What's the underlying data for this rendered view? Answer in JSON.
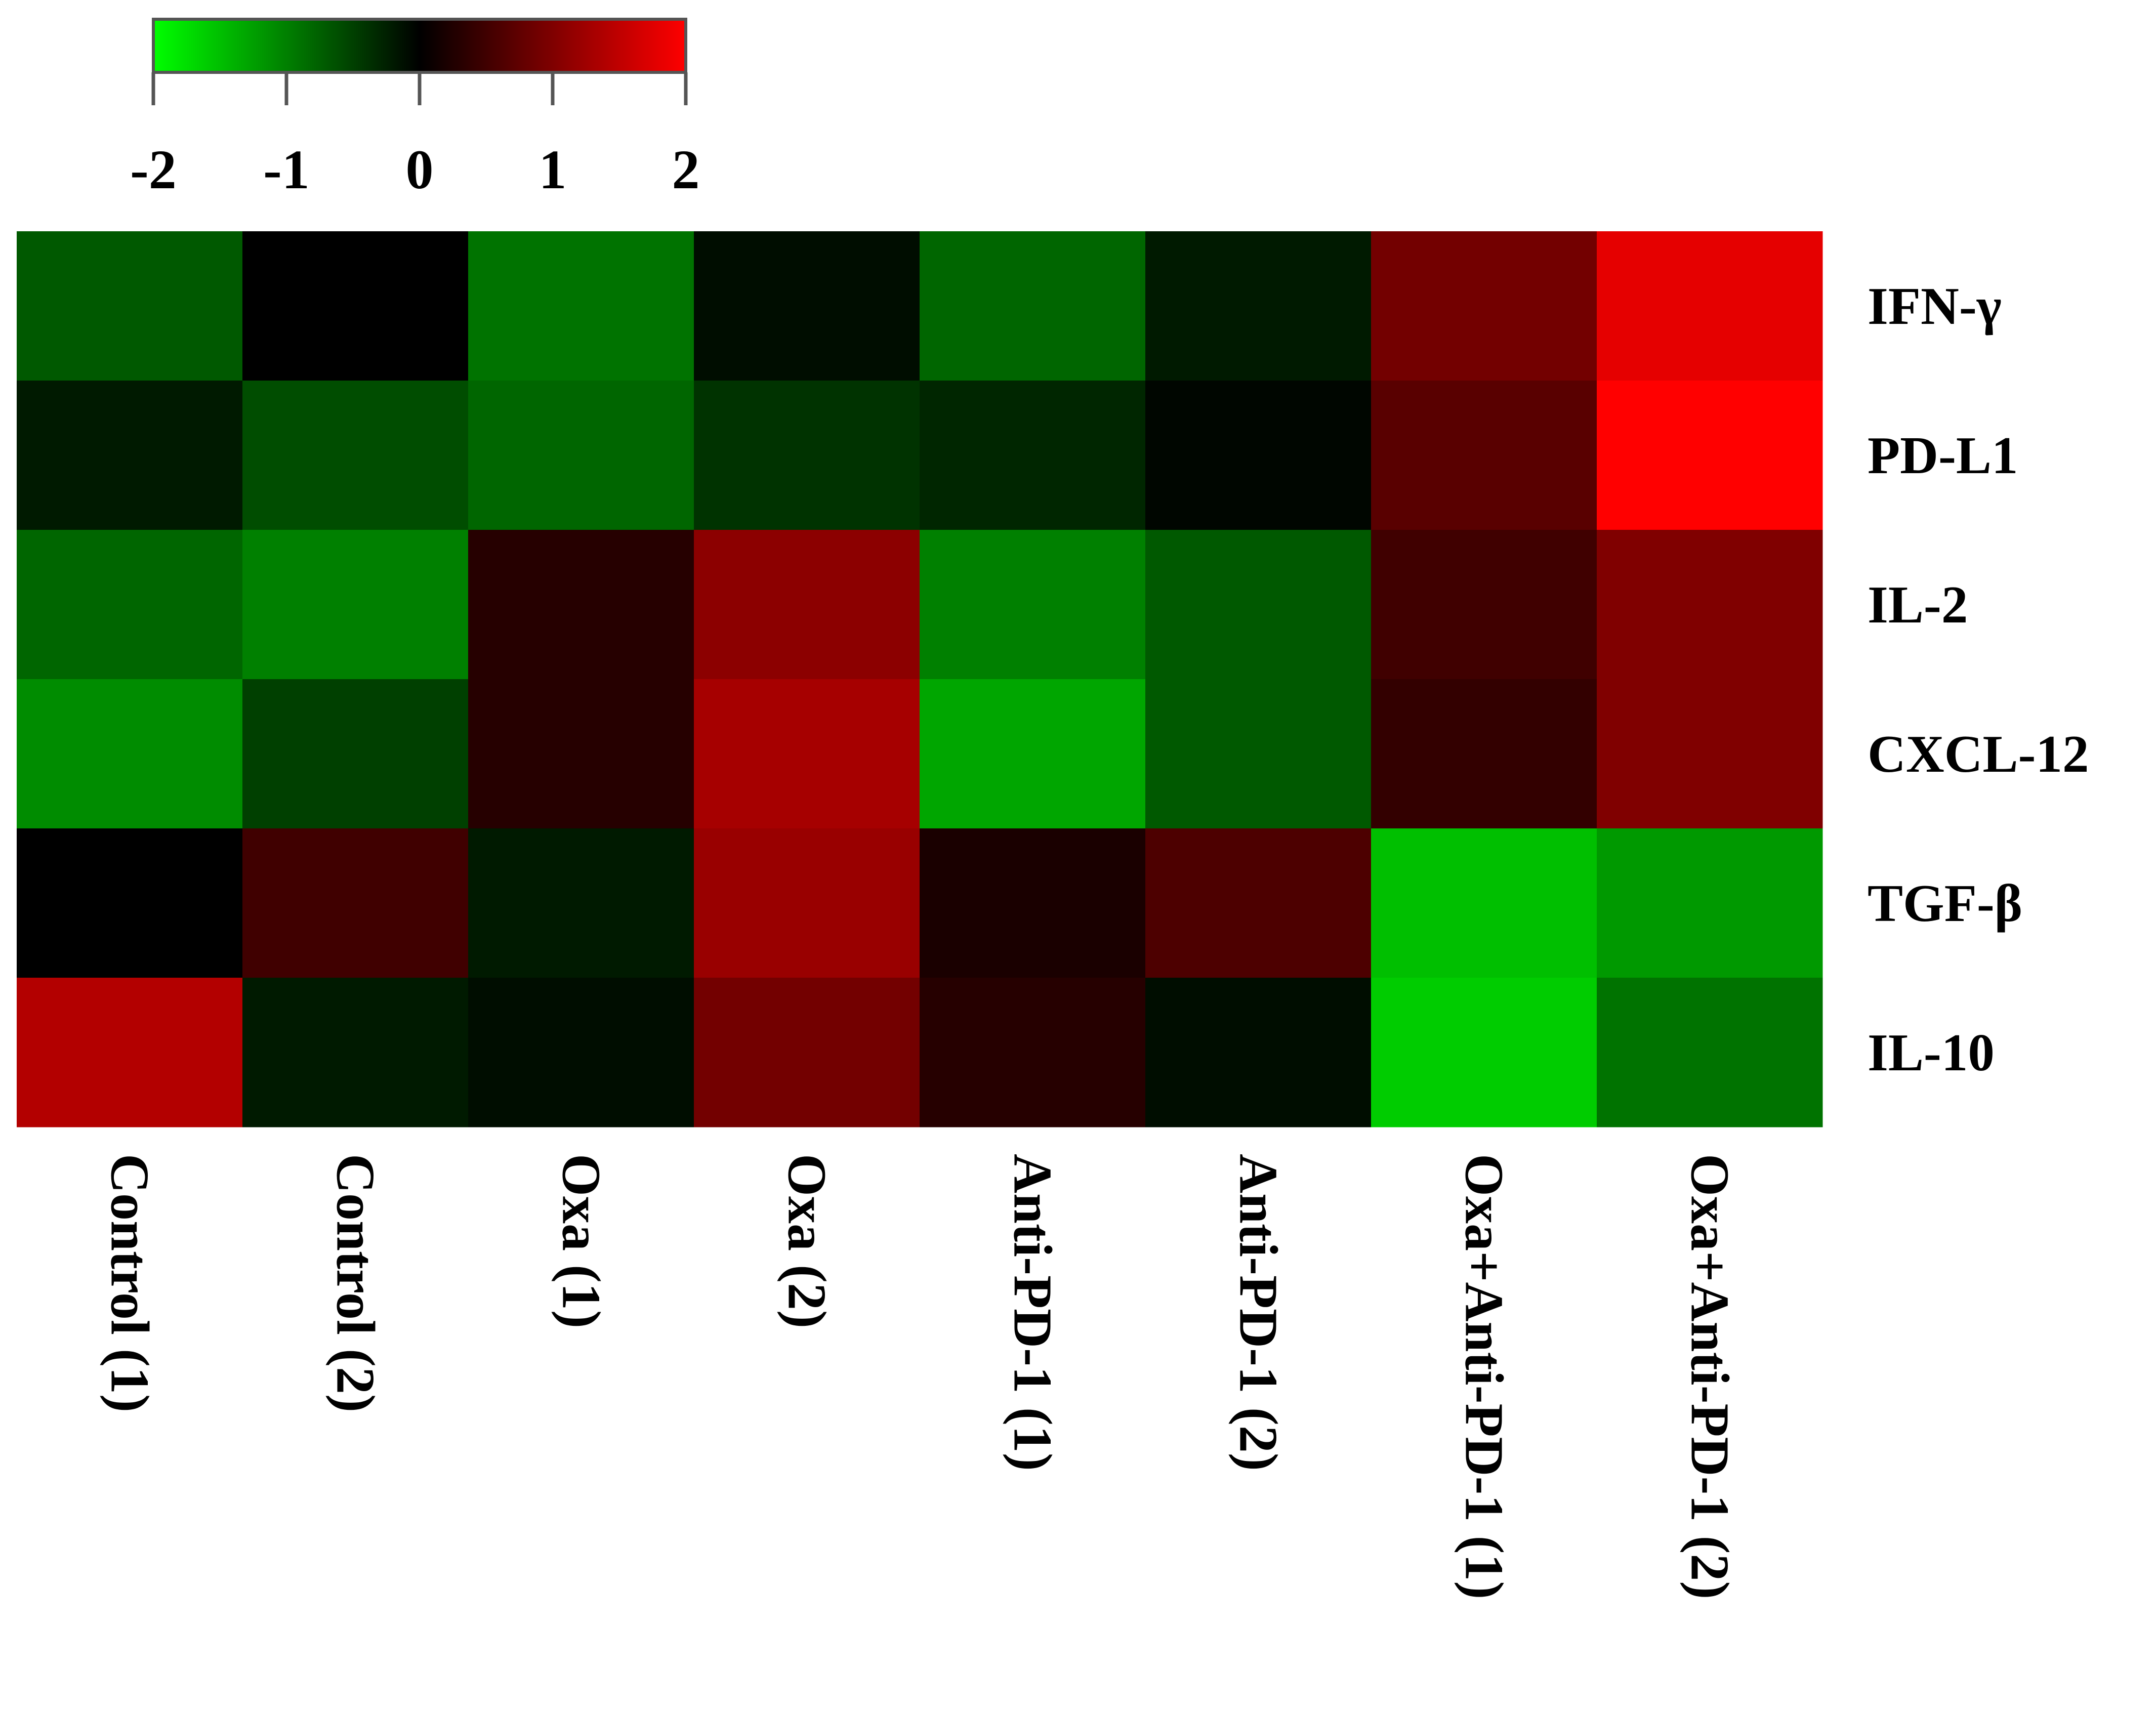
{
  "chart_data": {
    "type": "heatmap",
    "title": "",
    "xlabel": "",
    "ylabel": "",
    "columns": [
      "Control (1)",
      "Control (2)",
      "Oxa (1)",
      "Oxa (2)",
      "Anti-PD-1 (1)",
      "Anti-PD-1 (2)",
      "Oxa+Anti-PD-1 (1)",
      "Oxa+Anti-PD-1 (2)"
    ],
    "rows": [
      "IFN-γ",
      "PD-L1",
      "IL-2",
      "CXCL-12",
      "TGF-β",
      "IL-10"
    ],
    "values": [
      [
        -0.7,
        0.0,
        -0.9,
        -0.1,
        -0.8,
        -0.2,
        0.9,
        1.8
      ],
      [
        -0.2,
        -0.6,
        -0.8,
        -0.4,
        -0.3,
        -0.05,
        0.7,
        2.0
      ],
      [
        -0.8,
        -1.0,
        0.3,
        1.1,
        -1.0,
        -0.7,
        0.5,
        1.0
      ],
      [
        -1.1,
        -0.5,
        0.3,
        1.3,
        -1.3,
        -0.7,
        0.4,
        1.0
      ],
      [
        0.0,
        0.5,
        -0.2,
        1.2,
        0.2,
        0.6,
        -1.5,
        -1.2
      ],
      [
        1.4,
        -0.2,
        -0.1,
        0.9,
        0.3,
        -0.1,
        -1.6,
        -0.9
      ]
    ],
    "color_scale": {
      "min": -2,
      "max": 2,
      "ticks": [
        "-2",
        "-1",
        "0",
        "1",
        "2"
      ],
      "colors": {
        "low": "#00ff00",
        "mid": "#000000",
        "high": "#ff0000"
      },
      "placement": "top-left"
    }
  }
}
